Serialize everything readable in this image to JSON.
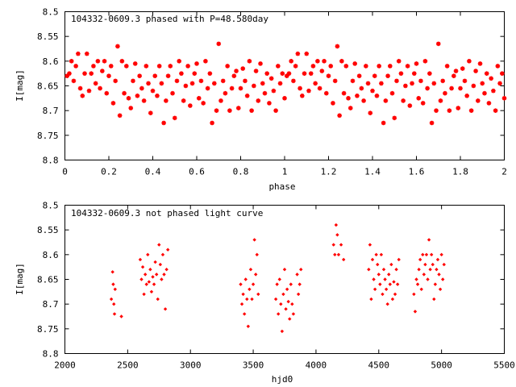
{
  "colors": {
    "points": "#ff0000",
    "axes": "#000000",
    "background": "#ffffff"
  },
  "chart_data": [
    {
      "type": "scatter",
      "title": "104332-0609.3 phased with P=48.580day",
      "xlabel": "phase",
      "ylabel": "I[mag]",
      "xlim": [
        0,
        2
      ],
      "ylim": [
        8.8,
        8.5
      ],
      "y_inverted": true,
      "grid": false,
      "xticks": [
        "0",
        "0.2",
        "0.4",
        "0.6",
        "0.8",
        "1",
        "1.2",
        "1.4",
        "1.6",
        "1.8",
        "2"
      ],
      "yticks": [
        "8.5",
        "8.55",
        "8.6",
        "8.65",
        "8.7",
        "8.75",
        "8.8"
      ],
      "marker": "star",
      "series": [
        {
          "x": [
            0.01,
            0.02,
            0.03,
            0.04,
            0.05,
            0.06,
            0.07,
            0.08,
            0.09,
            0.1,
            0.11,
            0.12,
            0.13,
            0.14,
            0.15,
            0.16,
            0.17,
            0.18,
            0.19,
            0.2,
            0.21,
            0.22,
            0.23,
            0.24,
            0.25,
            0.26,
            0.27,
            0.28,
            0.29,
            0.3,
            0.31,
            0.32,
            0.33,
            0.34,
            0.35,
            0.36,
            0.37,
            0.38,
            0.39,
            0.4,
            0.41,
            0.42,
            0.43,
            0.44,
            0.45,
            0.46,
            0.47,
            0.48,
            0.49,
            0.5,
            0.51,
            0.52,
            0.53,
            0.54,
            0.55,
            0.56,
            0.57,
            0.58,
            0.59,
            0.6,
            0.61,
            0.62,
            0.63,
            0.64,
            0.65,
            0.66,
            0.67,
            0.68,
            0.69,
            0.7,
            0.71,
            0.72,
            0.73,
            0.74,
            0.75,
            0.76,
            0.77,
            0.78,
            0.79,
            0.8,
            0.81,
            0.82,
            0.83,
            0.84,
            0.85,
            0.86,
            0.87,
            0.88,
            0.89,
            0.9,
            0.91,
            0.92,
            0.93,
            0.94,
            0.95,
            0.96,
            0.97,
            0.98,
            0.99,
            1.0
          ],
          "y": [
            8.63,
            8.625,
            8.6,
            8.64,
            8.61,
            8.585,
            8.655,
            8.67,
            8.625,
            8.585,
            8.66,
            8.625,
            8.61,
            8.645,
            8.6,
            8.655,
            8.62,
            8.6,
            8.665,
            8.63,
            8.61,
            8.685,
            8.64,
            8.57,
            8.71,
            8.6,
            8.665,
            8.61,
            8.675,
            8.695,
            8.64,
            8.605,
            8.67,
            8.63,
            8.655,
            8.68,
            8.61,
            8.645,
            8.705,
            8.66,
            8.63,
            8.67,
            8.61,
            8.645,
            8.725,
            8.68,
            8.63,
            8.61,
            8.665,
            8.715,
            8.64,
            8.6,
            8.625,
            8.68,
            8.65,
            8.61,
            8.69,
            8.645,
            8.625,
            8.605,
            8.675,
            8.64,
            8.685,
            8.6,
            8.655,
            8.625,
            8.725,
            8.645,
            8.7,
            8.565,
            8.68,
            8.64,
            8.665,
            8.61,
            8.7,
            8.655,
            8.63,
            8.62,
            8.695,
            8.655,
            8.615,
            8.64,
            8.67,
            8.6,
            8.7,
            8.65,
            8.62,
            8.68,
            8.605,
            8.645,
            8.665,
            8.625,
            8.685,
            8.635,
            8.66,
            8.7,
            8.61,
            8.645,
            8.625,
            8.675
          ]
        }
      ]
    },
    {
      "type": "scatter",
      "title": "104332-0609.3 not phased light curve",
      "xlabel": "hjd0",
      "ylabel": "I[mag]",
      "xlim": [
        2000,
        5500
      ],
      "ylim": [
        8.8,
        8.5
      ],
      "y_inverted": true,
      "grid": false,
      "xticks": [
        "2000",
        "2500",
        "3000",
        "3500",
        "4000",
        "4500",
        "5000",
        "5500"
      ],
      "yticks": [
        "8.5",
        "8.55",
        "8.6",
        "8.65",
        "8.7",
        "8.75",
        "8.8"
      ],
      "marker": "diamond",
      "series": [
        {
          "x": [
            2370,
            2380,
            2385,
            2390,
            2395,
            2400,
            2450,
            2600,
            2610,
            2620,
            2630,
            2640,
            2650,
            2660,
            2670,
            2680,
            2690,
            2700,
            2710,
            2720,
            2730,
            2740,
            2750,
            2760,
            2770,
            2780,
            2790,
            2800,
            2810,
            2820,
            3400,
            3410,
            3420,
            3430,
            3440,
            3450,
            3460,
            3470,
            3480,
            3490,
            3500,
            3510,
            3520,
            3530,
            3540,
            3680,
            3690,
            3700,
            3710,
            3720,
            3730,
            3740,
            3750,
            3760,
            3770,
            3780,
            3790,
            3800,
            3810,
            3820,
            3850,
            3860,
            3870,
            3880,
            4140,
            4150,
            4160,
            4170,
            4180,
            4200,
            4220,
            4420,
            4430,
            4440,
            4450,
            4460,
            4470,
            4480,
            4490,
            4500,
            4510,
            4520,
            4530,
            4540,
            4550,
            4560,
            4570,
            4580,
            4590,
            4600,
            4610,
            4620,
            4630,
            4640,
            4650,
            4660,
            4780,
            4790,
            4800,
            4810,
            4820,
            4830,
            4840,
            4850,
            4860,
            4870,
            4880,
            4890,
            4900,
            4910,
            4920,
            4930,
            4940,
            4950,
            4960,
            4970,
            4980,
            4990,
            5000,
            5010,
            5020
          ],
          "y": [
            8.69,
            8.635,
            8.66,
            8.7,
            8.72,
            8.67,
            8.725,
            8.61,
            8.65,
            8.625,
            8.68,
            8.64,
            8.66,
            8.6,
            8.655,
            8.63,
            8.675,
            8.645,
            8.66,
            8.615,
            8.64,
            8.69,
            8.58,
            8.62,
            8.65,
            8.6,
            8.64,
            8.71,
            8.63,
            8.59,
            8.66,
            8.7,
            8.68,
            8.72,
            8.65,
            8.69,
            8.745,
            8.67,
            8.63,
            8.69,
            8.66,
            8.57,
            8.64,
            8.6,
            8.68,
            8.69,
            8.66,
            8.72,
            8.65,
            8.7,
            8.755,
            8.68,
            8.63,
            8.71,
            8.67,
            8.695,
            8.73,
            8.66,
            8.7,
            8.72,
            8.64,
            8.68,
            8.66,
            8.63,
            8.58,
            8.6,
            8.54,
            8.56,
            8.6,
            8.58,
            8.61,
            8.63,
            8.58,
            8.69,
            8.61,
            8.65,
            8.67,
            8.6,
            8.62,
            8.64,
            8.66,
            8.6,
            8.68,
            8.63,
            8.65,
            8.67,
            8.7,
            8.64,
            8.66,
            8.62,
            8.69,
            8.655,
            8.68,
            8.63,
            8.66,
            8.61,
            8.68,
            8.715,
            8.65,
            8.66,
            8.63,
            8.61,
            8.67,
            8.6,
            8.64,
            8.62,
            8.6,
            8.65,
            8.57,
            8.63,
            8.6,
            8.62,
            8.69,
            8.66,
            8.63,
            8.61,
            8.64,
            8.67,
            8.6,
            8.65,
            8.62
          ]
        }
      ]
    }
  ]
}
